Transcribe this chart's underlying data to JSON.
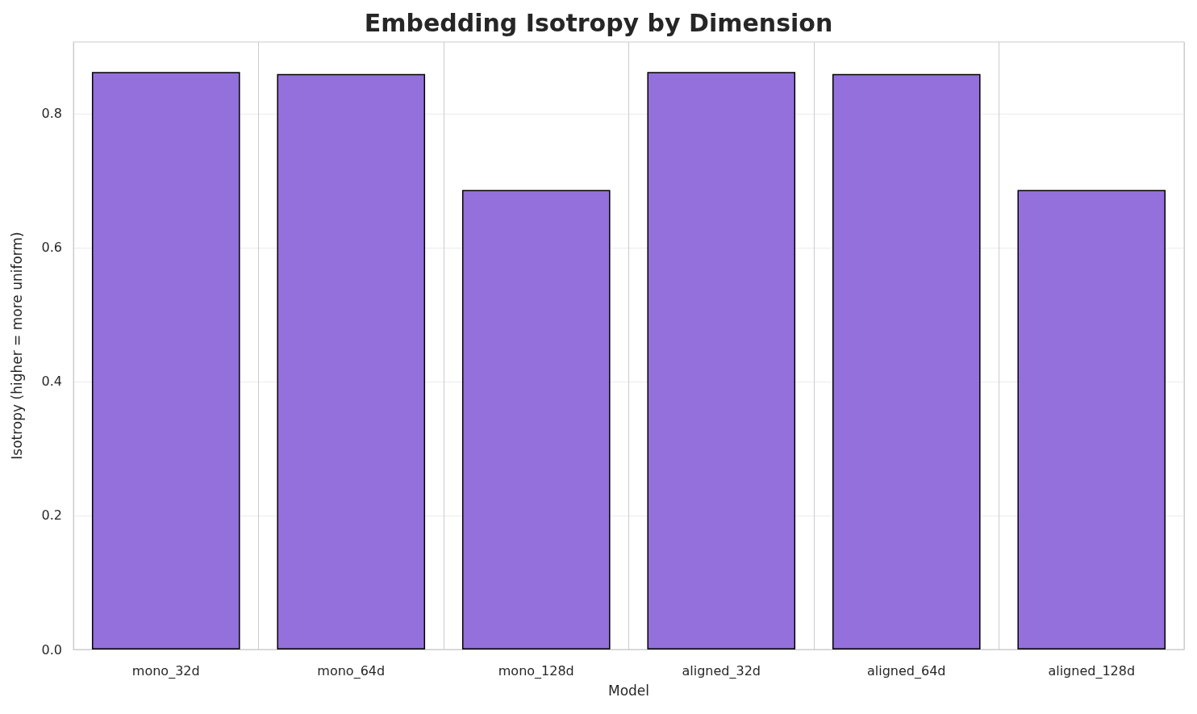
{
  "chart_data": {
    "type": "bar",
    "title": "Embedding Isotropy by Dimension",
    "xlabel": "Model",
    "ylabel": "Isotropy (higher = more uniform)",
    "categories": [
      "mono_32d",
      "mono_64d",
      "mono_128d",
      "aligned_32d",
      "aligned_64d",
      "aligned_128d"
    ],
    "values": [
      0.862,
      0.859,
      0.686,
      0.862,
      0.859,
      0.686
    ],
    "color": "#9370db",
    "ylim": [
      0,
      0.907
    ],
    "yticks": [
      {
        "value": 0,
        "label": "0.0"
      },
      0.2,
      0.4,
      0.6,
      0.8
    ],
    "grid": true
  }
}
